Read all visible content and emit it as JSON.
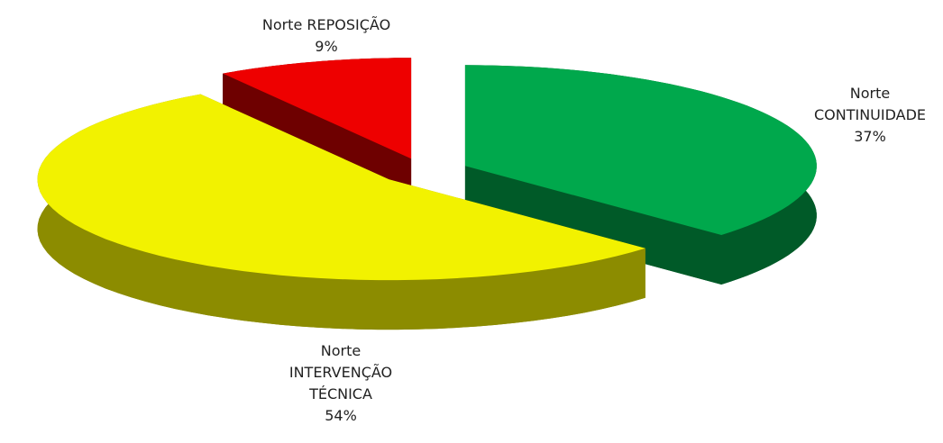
{
  "chart_data": {
    "type": "pie",
    "categories": [
      "Norte CONTINUIDADE",
      "Norte INTERVENÇÃO TÉCNICA",
      "Norte REPOSIÇÃO"
    ],
    "values": [
      37,
      54,
      9
    ],
    "value_labels": [
      "37%",
      "54%",
      "9%"
    ],
    "colors": [
      "#00a84c",
      "#f2f200",
      "#ee0000"
    ],
    "side_colors": [
      "#005a28",
      "#8c8c00",
      "#6e0000"
    ]
  }
}
